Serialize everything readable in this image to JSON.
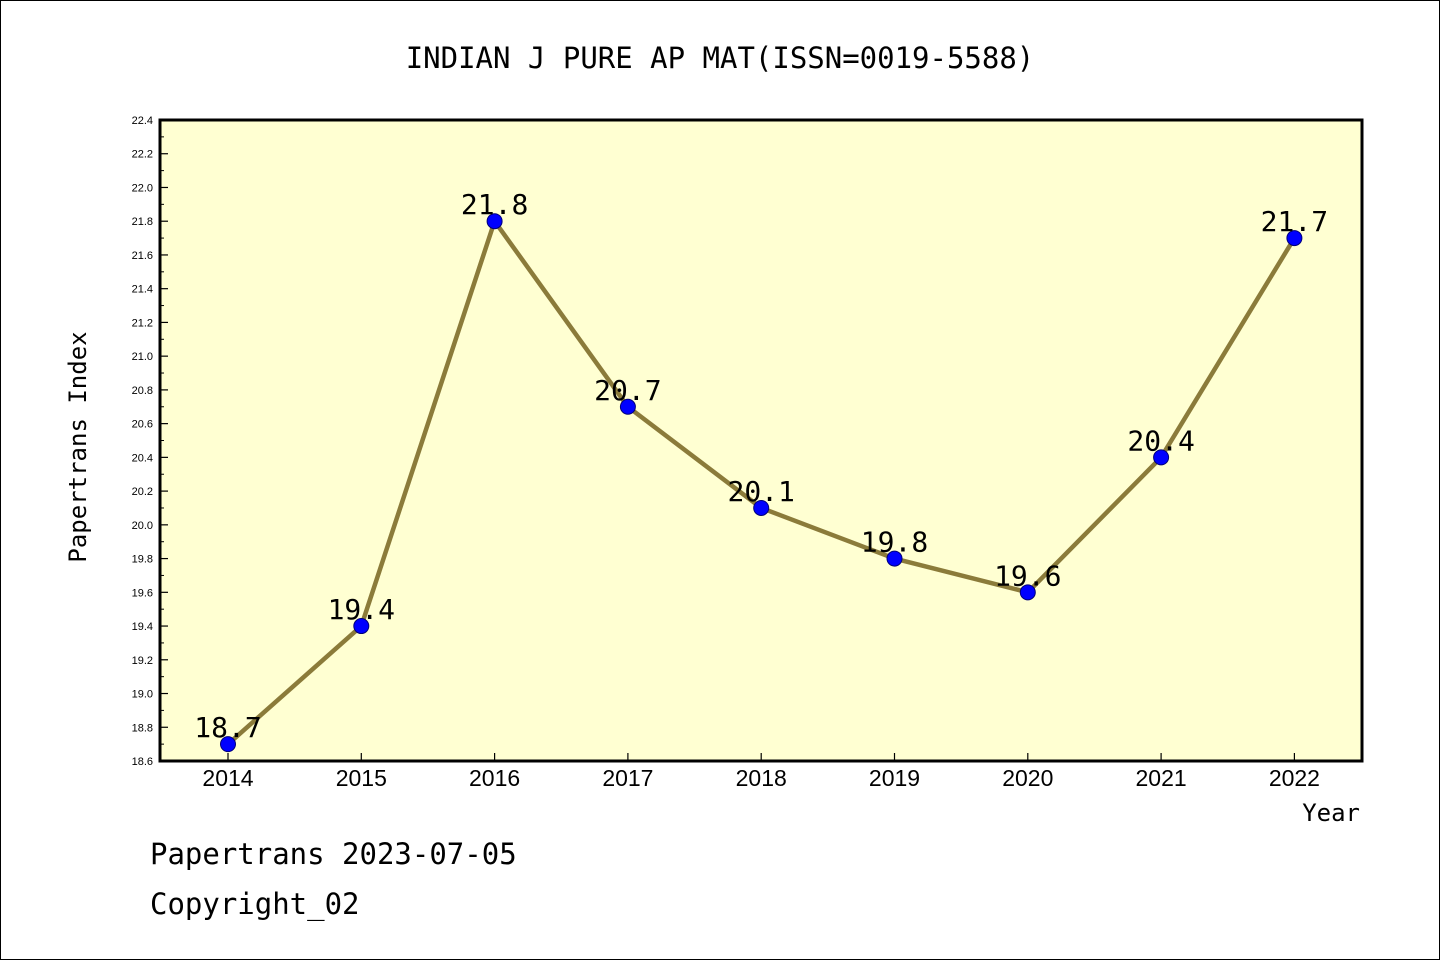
{
  "chart_data": {
    "type": "line",
    "title": "INDIAN J PURE AP MAT(ISSN=0019-5588)",
    "xlabel": "Year",
    "ylabel": "Papertrans Index",
    "categories": [
      "2014",
      "2015",
      "2016",
      "2017",
      "2018",
      "2019",
      "2020",
      "2021",
      "2022"
    ],
    "series": [
      {
        "values": [
          18.7,
          19.4,
          21.8,
          20.7,
          20.1,
          19.8,
          19.6,
          20.4,
          21.7
        ],
        "labels": [
          "18.7",
          "19.4",
          "21.8",
          "20.7",
          "20.1",
          "19.8",
          "19.6",
          "20.4",
          "21.7"
        ]
      }
    ],
    "ylim": [
      18.6,
      22.4
    ],
    "yticks": [
      "18.6",
      "18.8",
      "19.0",
      "19.2",
      "19.4",
      "19.6",
      "19.8",
      "20.0",
      "20.2",
      "20.4",
      "20.6",
      "20.8",
      "21.0",
      "21.2",
      "21.4",
      "21.6",
      "21.8",
      "22.0",
      "22.2",
      "22.4"
    ],
    "grid": false,
    "legend": "none",
    "colors": {
      "plot_background": "#FFFFD2",
      "line": "#8B7B3A",
      "marker": "#0000FF",
      "axis": "#000000"
    }
  },
  "footer": {
    "line1": "Papertrans 2023-07-05",
    "line2": "Copyright_02"
  }
}
